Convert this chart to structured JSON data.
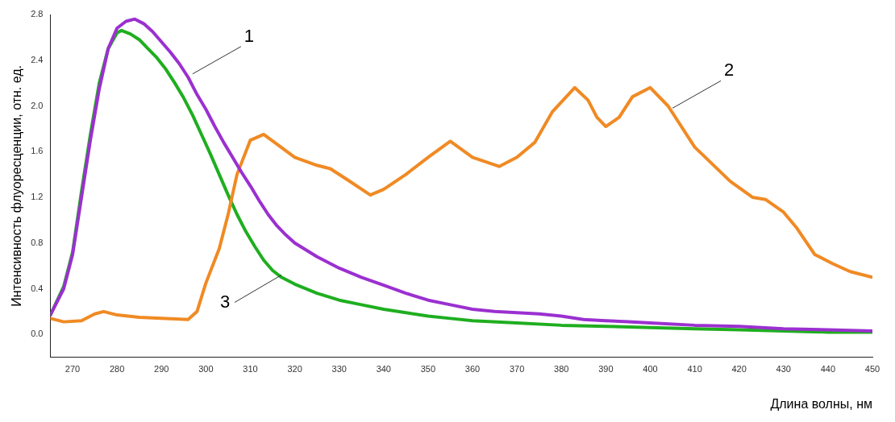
{
  "chart_data": {
    "type": "line",
    "xlabel": "Длина волны, нм",
    "ylabel": "Интенсивность флуоресценции, отн. ед.",
    "xlim": [
      265,
      450
    ],
    "xticks": [
      270,
      280,
      290,
      300,
      310,
      320,
      330,
      340,
      350,
      360,
      370,
      380,
      390,
      400,
      410,
      420,
      430,
      440,
      450
    ],
    "ylim": [
      -0.2,
      2.8
    ],
    "yticks": [
      {
        "value": 0,
        "label": "0.0"
      },
      {
        "value": 0.4,
        "label": "0.4"
      },
      {
        "value": 0.8,
        "label": "0.8"
      },
      {
        "value": 1.2,
        "label": "1.2"
      },
      {
        "value": 1.6,
        "label": "1.6"
      },
      {
        "value": 2.0,
        "label": "2.0"
      },
      {
        "value": 2.4,
        "label": "2.4"
      },
      {
        "value": 2.8,
        "label": "2.8"
      }
    ],
    "grid": false,
    "legend": false,
    "marker": "none",
    "line_style": "solid",
    "series": [
      {
        "color": "#9b30d0",
        "x": [
          265,
          268,
          270,
          272,
          274,
          276,
          278,
          280,
          282,
          284,
          286,
          288,
          290,
          292,
          294,
          296,
          298,
          300,
          302,
          304,
          306,
          308,
          310,
          312,
          314,
          316,
          318,
          320,
          325,
          330,
          335,
          340,
          345,
          350,
          355,
          360,
          365,
          370,
          375,
          380,
          385,
          390,
          395,
          400,
          410,
          420,
          430,
          440,
          450
        ],
        "values": [
          0.17,
          0.4,
          0.7,
          1.2,
          1.7,
          2.15,
          2.5,
          2.68,
          2.74,
          2.76,
          2.72,
          2.65,
          2.56,
          2.47,
          2.37,
          2.25,
          2.1,
          1.97,
          1.82,
          1.68,
          1.55,
          1.42,
          1.3,
          1.17,
          1.05,
          0.95,
          0.87,
          0.8,
          0.68,
          0.58,
          0.5,
          0.43,
          0.36,
          0.3,
          0.26,
          0.22,
          0.2,
          0.19,
          0.18,
          0.16,
          0.13,
          0.12,
          0.11,
          0.1,
          0.08,
          0.07,
          0.05,
          0.04,
          0.03
        ]
      },
      {
        "color": "#f08a24",
        "x": [
          265,
          268,
          272,
          275,
          277,
          280,
          285,
          290,
          296,
          298,
          300,
          303,
          305,
          307,
          310,
          313,
          320,
          325,
          328,
          332,
          337,
          340,
          345,
          350,
          355,
          360,
          366,
          370,
          374,
          378,
          383,
          386,
          388,
          390,
          393,
          396,
          400,
          404,
          410,
          418,
          423,
          426,
          430,
          433,
          437,
          441,
          445,
          450
        ],
        "values": [
          0.14,
          0.11,
          0.12,
          0.18,
          0.2,
          0.17,
          0.15,
          0.14,
          0.13,
          0.2,
          0.45,
          0.75,
          1.05,
          1.4,
          1.7,
          1.75,
          1.55,
          1.48,
          1.45,
          1.35,
          1.22,
          1.27,
          1.4,
          1.55,
          1.69,
          1.55,
          1.47,
          1.55,
          1.68,
          1.95,
          2.16,
          2.05,
          1.9,
          1.82,
          1.9,
          2.08,
          2.16,
          2.0,
          1.64,
          1.34,
          1.2,
          1.18,
          1.07,
          0.93,
          0.7,
          0.62,
          0.55,
          0.5
        ]
      },
      {
        "color": "#1fae1f",
        "x": [
          265,
          268,
          270,
          272,
          274,
          276,
          278,
          280,
          281,
          283,
          285,
          287,
          289,
          291,
          293,
          295,
          297,
          299,
          301,
          303,
          305,
          307,
          309,
          311,
          313,
          315,
          317,
          320,
          325,
          330,
          335,
          340,
          345,
          350,
          355,
          360,
          370,
          380,
          390,
          400,
          410,
          420,
          430,
          440,
          450
        ],
        "values": [
          0.17,
          0.42,
          0.72,
          1.25,
          1.75,
          2.2,
          2.5,
          2.64,
          2.66,
          2.63,
          2.58,
          2.5,
          2.42,
          2.32,
          2.2,
          2.07,
          1.92,
          1.75,
          1.58,
          1.4,
          1.22,
          1.05,
          0.9,
          0.77,
          0.65,
          0.56,
          0.5,
          0.44,
          0.36,
          0.3,
          0.26,
          0.22,
          0.19,
          0.16,
          0.14,
          0.12,
          0.1,
          0.08,
          0.07,
          0.06,
          0.05,
          0.04,
          0.03,
          0.02,
          0.02
        ]
      }
    ],
    "annotations": [
      {
        "text": "1",
        "x": 297,
        "y": 2.28
      },
      {
        "text": "2",
        "x": 405,
        "y": 1.98
      },
      {
        "text": "3",
        "x": 317,
        "y": 0.52
      }
    ]
  }
}
